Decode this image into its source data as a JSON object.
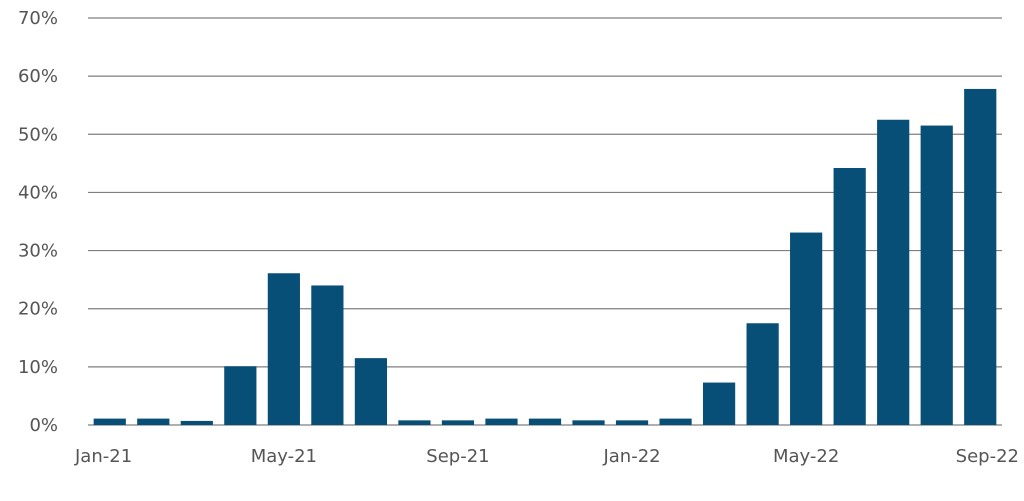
{
  "chart_data": {
    "type": "bar",
    "title": "",
    "xlabel": "",
    "ylabel": "",
    "ylim": [
      0,
      0.7
    ],
    "y_ticks": [
      0,
      0.1,
      0.2,
      0.3,
      0.4,
      0.5,
      0.6,
      0.7
    ],
    "y_tick_labels": [
      "0%",
      "10%",
      "20%",
      "30%",
      "40%",
      "50%",
      "60%",
      "70%"
    ],
    "grid": "horizontal",
    "categories": [
      "Jan-21",
      "Feb-21",
      "Mar-21",
      "Apr-21",
      "May-21",
      "Jun-21",
      "Jul-21",
      "Aug-21",
      "Sep-21",
      "Oct-21",
      "Nov-21",
      "Dec-21",
      "Jan-22",
      "Feb-22",
      "Mar-22",
      "Apr-22",
      "May-22",
      "Jun-22",
      "Jul-22",
      "Aug-22",
      "Sep-22"
    ],
    "x_tick_labels": [
      {
        "index": 0,
        "label": "Jan-21"
      },
      {
        "index": 4,
        "label": "May-21"
      },
      {
        "index": 8,
        "label": "Sep-21"
      },
      {
        "index": 12,
        "label": "Jan-22"
      },
      {
        "index": 16,
        "label": "May-22"
      },
      {
        "index": 20,
        "label": "Sep-22"
      }
    ],
    "values": [
      0.011,
      0.011,
      0.007,
      0.101,
      0.261,
      0.24,
      0.115,
      0.008,
      0.008,
      0.011,
      0.011,
      0.008,
      0.008,
      0.011,
      0.073,
      0.175,
      0.331,
      0.442,
      0.525,
      0.515,
      0.578
    ],
    "bar_color": "#084f78",
    "grid_color": "#7f7f7f"
  }
}
